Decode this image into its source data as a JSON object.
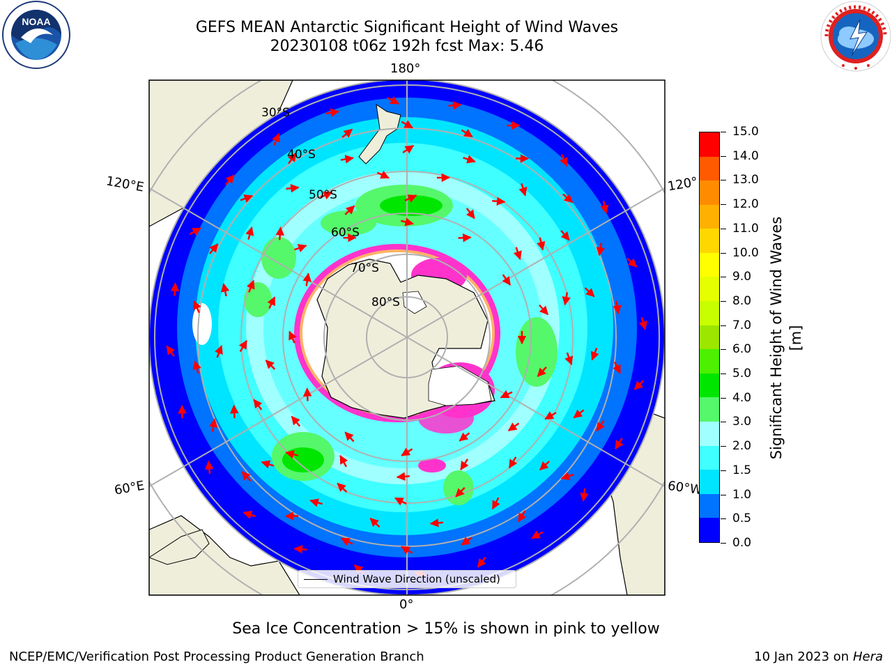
{
  "title_line1": "GEFS MEAN Antarctic Significant Height of Wind Waves",
  "title_line2": "20230108 t06z 192h fcst   Max: 5.46",
  "meridian_labels": {
    "top": "180°",
    "bottom": "0°",
    "upper_left": "120°E",
    "lower_left": "60°E",
    "upper_right": "120°",
    "lower_right": "60°W"
  },
  "latitude_labels": [
    "30°S",
    "40°S",
    "50°S",
    "60°S",
    "70°S",
    "80°S"
  ],
  "legend_label": "Wind Wave Direction (unscaled)",
  "colorbar": {
    "title": "Significant Height of Wind Waves [m]",
    "ticks": [
      "0.0",
      "0.5",
      "1.0",
      "1.5",
      "2.0",
      "3.0",
      "4.0",
      "5.0",
      "6.0",
      "7.0",
      "8.0",
      "9.0",
      "10.0",
      "11.0",
      "12.0",
      "13.0",
      "14.0",
      "15.0"
    ],
    "colors": [
      "#0000ff",
      "#0073ff",
      "#00e5ff",
      "#3fffff",
      "#a0ffff",
      "#55f76b",
      "#00e600",
      "#4cf000",
      "#9ce600",
      "#c8ff00",
      "#e6ff00",
      "#ffff00",
      "#ffd700",
      "#ffb000",
      "#ff8c00",
      "#ff5a00",
      "#ff0000"
    ]
  },
  "caption": "Sea Ice Concentration > 15% is shown in pink to yellow",
  "footer_left": "NCEP/EMC/Verification Post Processing Product Generation Branch",
  "footer_right_text": "10 Jan 2023 on ",
  "footer_right_italic": "Hera",
  "map_colors": {
    "land": "#efeedb",
    "deep": "#0000ff",
    "ring1": "#0073ff",
    "ring2": "#00e5ff",
    "ring3": "#3fffff",
    "ring4": "#a0ffff",
    "green": "#55f76b",
    "bright_green": "#00e600",
    "ice_pink": "#ff33cc",
    "ice_white": "#ffffff",
    "arrow": "#ff0000",
    "grid": "#b0b0b0"
  }
}
